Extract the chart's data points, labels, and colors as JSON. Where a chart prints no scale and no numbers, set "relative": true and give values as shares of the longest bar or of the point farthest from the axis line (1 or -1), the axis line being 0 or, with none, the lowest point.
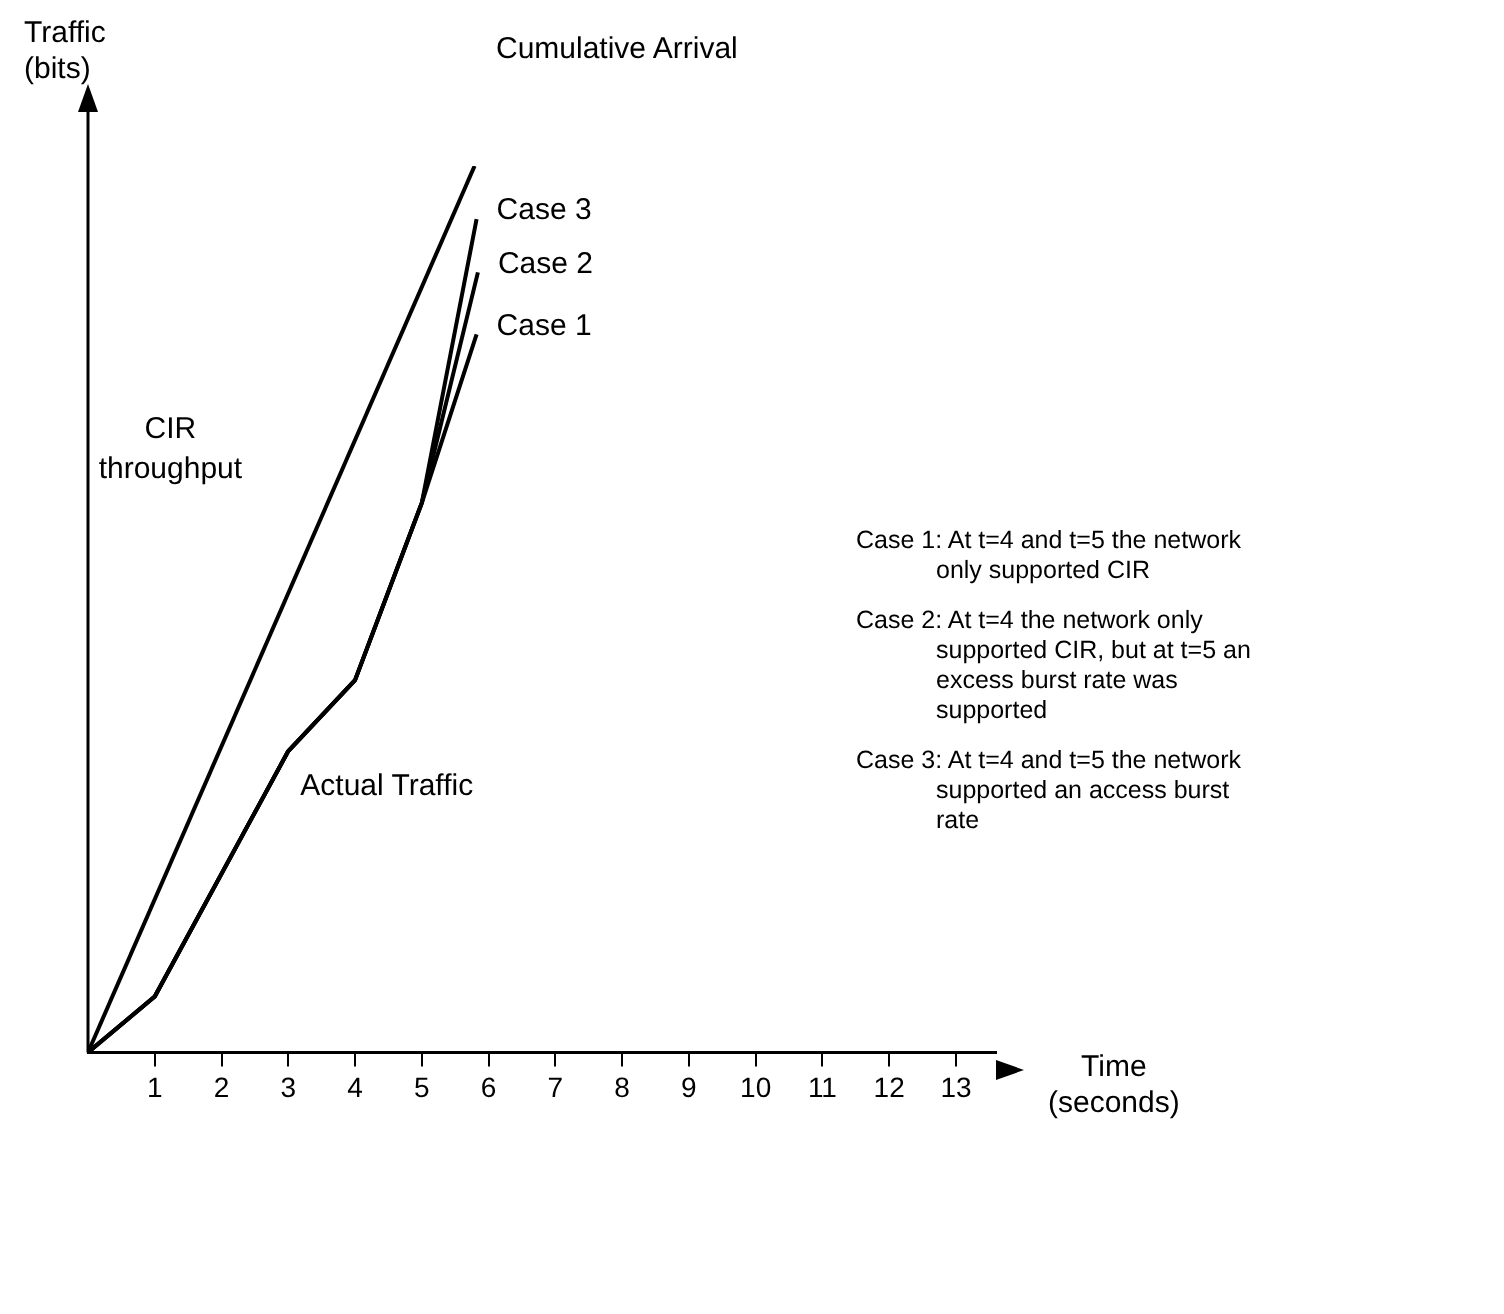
{
  "chart_data": {
    "type": "line",
    "relative": true,
    "xlabel": "Time (seconds)",
    "ylabel": "Traffic (bits)",
    "xlim": [
      0,
      13.6
    ],
    "xticks": [
      1,
      2,
      3,
      4,
      5,
      6,
      7,
      8,
      9,
      10,
      11,
      12,
      13
    ],
    "legend": false,
    "grid": false,
    "marker": "none",
    "line_style": "solid",
    "series": [
      {
        "name": "CIR throughput",
        "color": "#000000",
        "x": [
          0,
          5.79
        ],
        "values": [
          0,
          1
        ]
      },
      {
        "name": "Case 3",
        "color": "#000000",
        "x": [
          0,
          1,
          3,
          4,
          5,
          5.82
        ],
        "values": [
          0,
          0.063,
          0.34,
          0.42,
          0.62,
          0.94
        ]
      },
      {
        "name": "Case 2",
        "color": "#000000",
        "x": [
          0,
          1,
          3,
          4,
          5,
          5.84
        ],
        "values": [
          0,
          0.063,
          0.34,
          0.42,
          0.62,
          0.88
        ]
      },
      {
        "name": "Case 1",
        "color": "#000000",
        "x": [
          0,
          1,
          3,
          4,
          5,
          5.82
        ],
        "values": [
          0,
          0.063,
          0.34,
          0.42,
          0.62,
          0.81
        ]
      }
    ],
    "annotations": [
      "Cumulative Arrival",
      {
        "text": "Actual Traffic",
        "x": 3,
        "y": 0.34
      },
      "Case 1: At t=4 and t=5 the network only supported CIR",
      "Case 2: At t=4 the network only supported CIR, but at t=5 an excess burst rate was supported",
      "Case 3: At t=4 and t=5 the network supported an access burst rate"
    ]
  }
}
